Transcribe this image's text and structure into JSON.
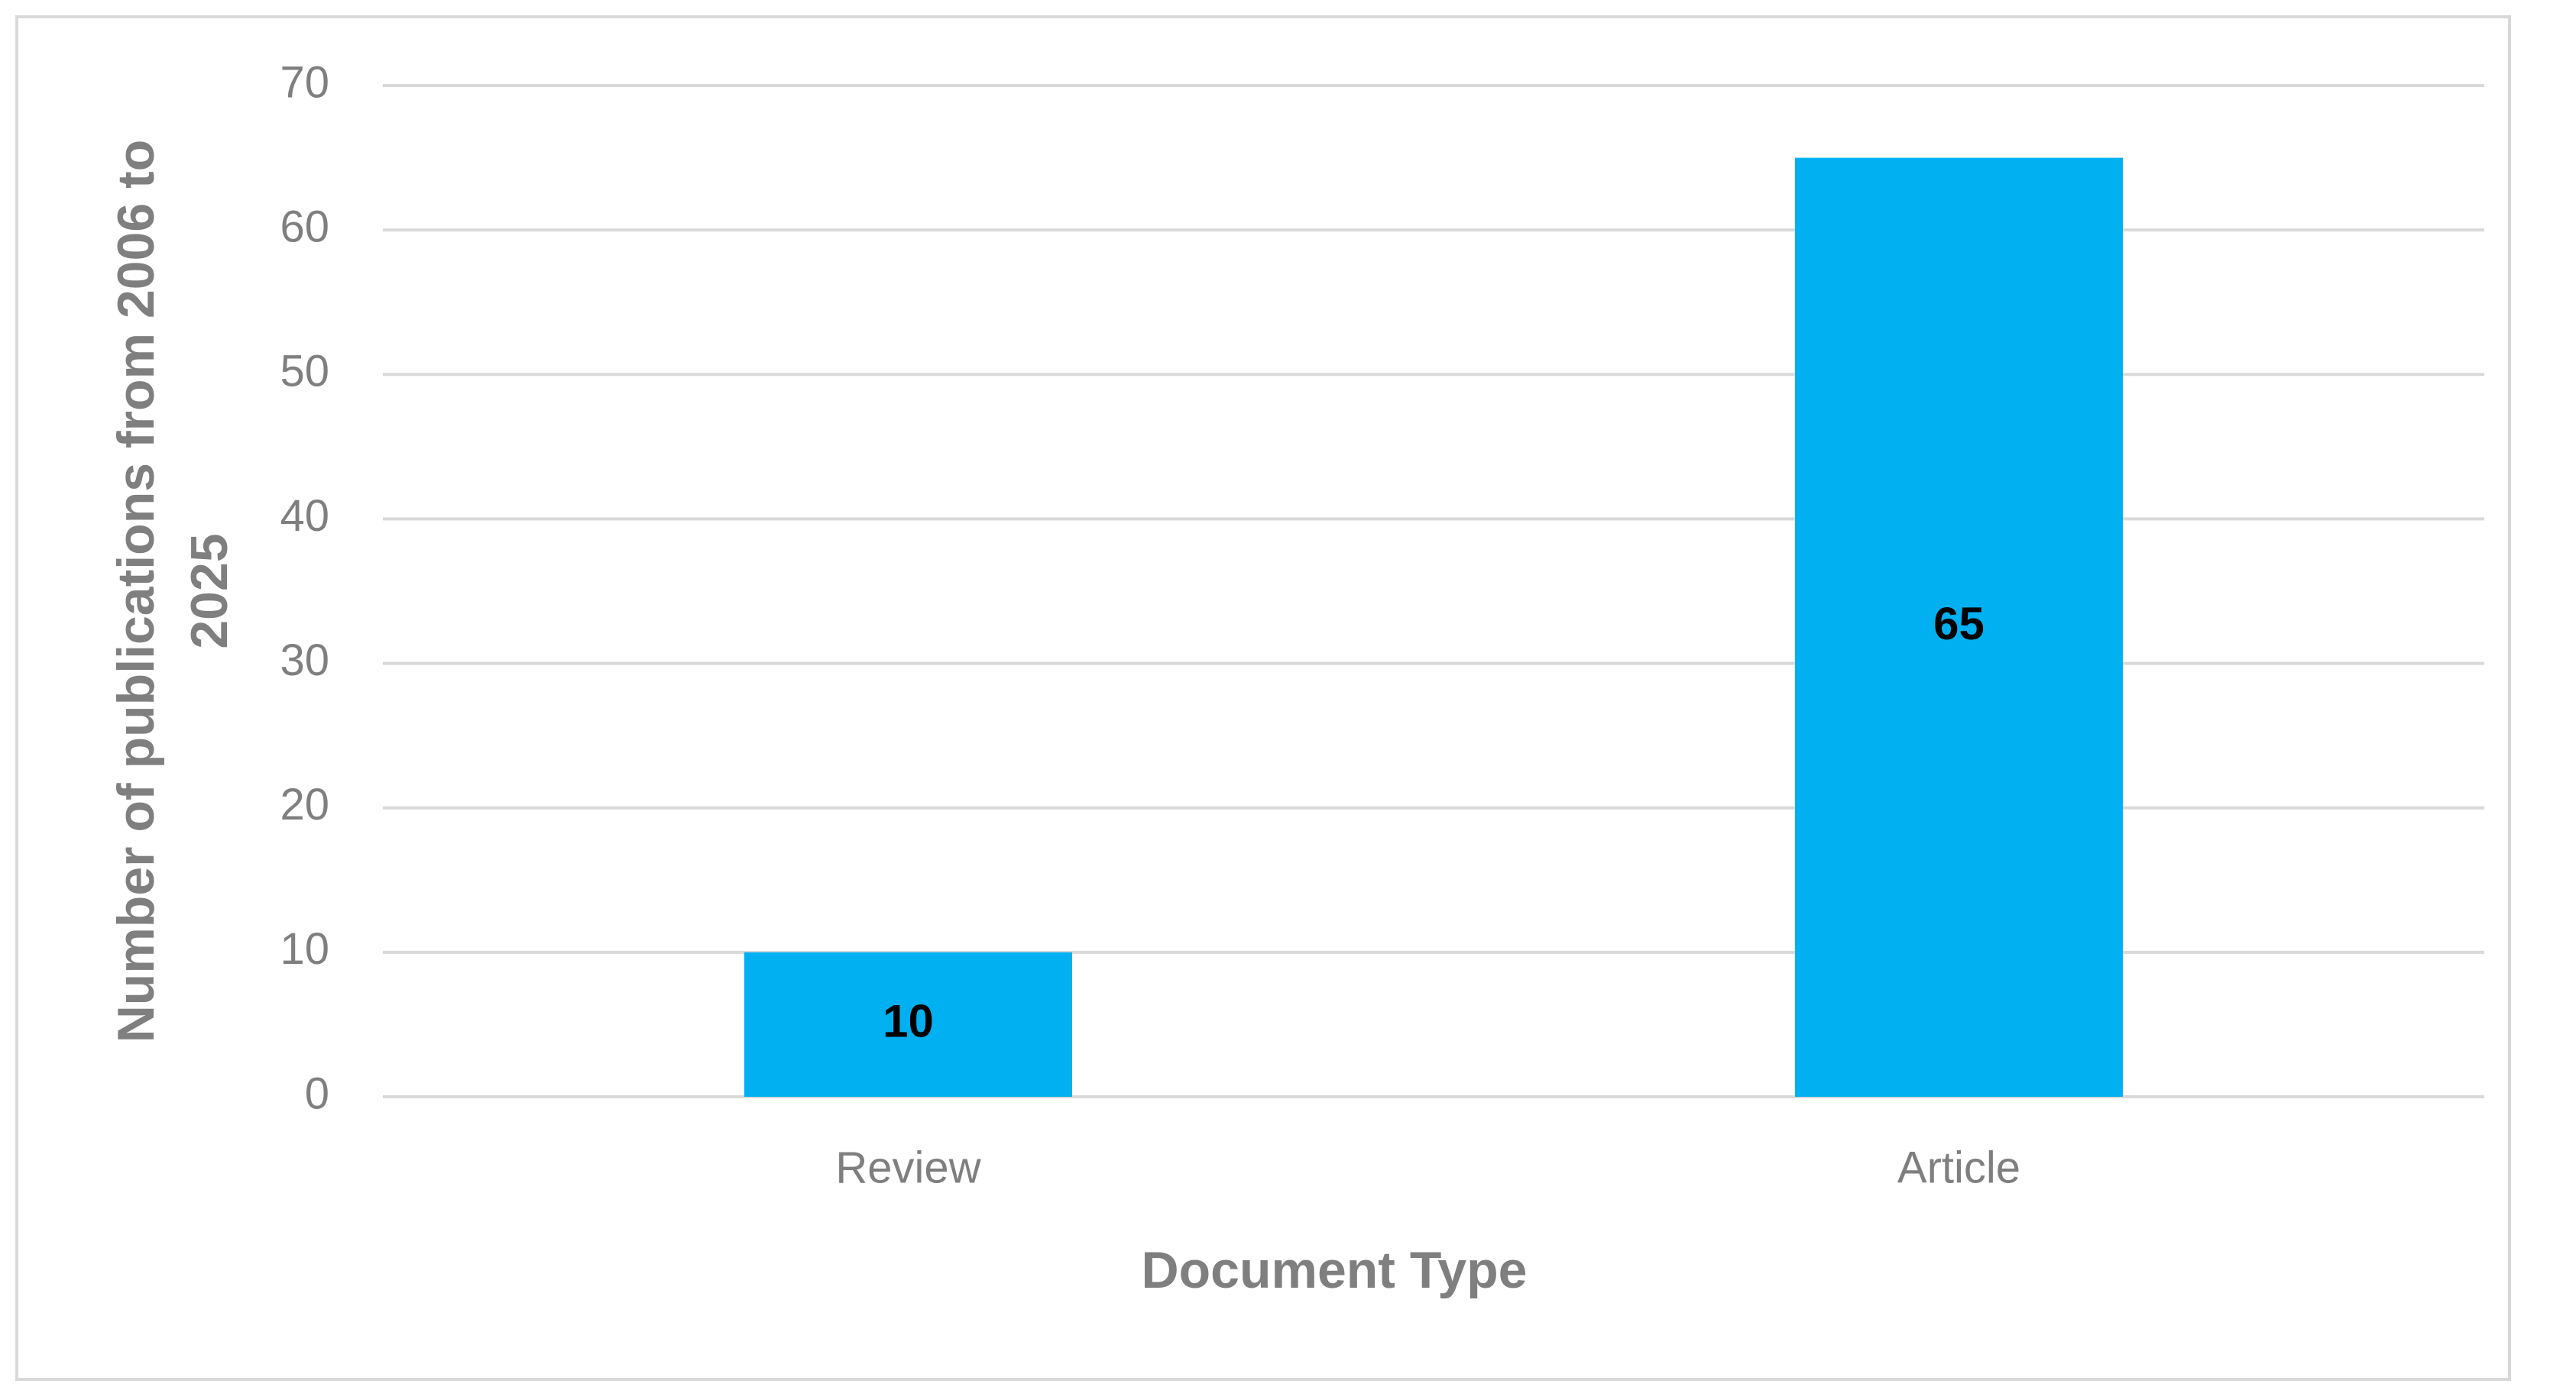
{
  "chart_data": {
    "type": "bar",
    "x_label": "Document Type",
    "y_label": "Number of publications from 2006 to 2025",
    "categories": [
      "Review",
      "Article"
    ],
    "values": [
      10,
      65
    ],
    "color": "#00b0f0",
    "ylim": [
      0,
      70
    ],
    "yticks": [
      0,
      10,
      20,
      30,
      40,
      50,
      60,
      70
    ],
    "grid": true
  }
}
